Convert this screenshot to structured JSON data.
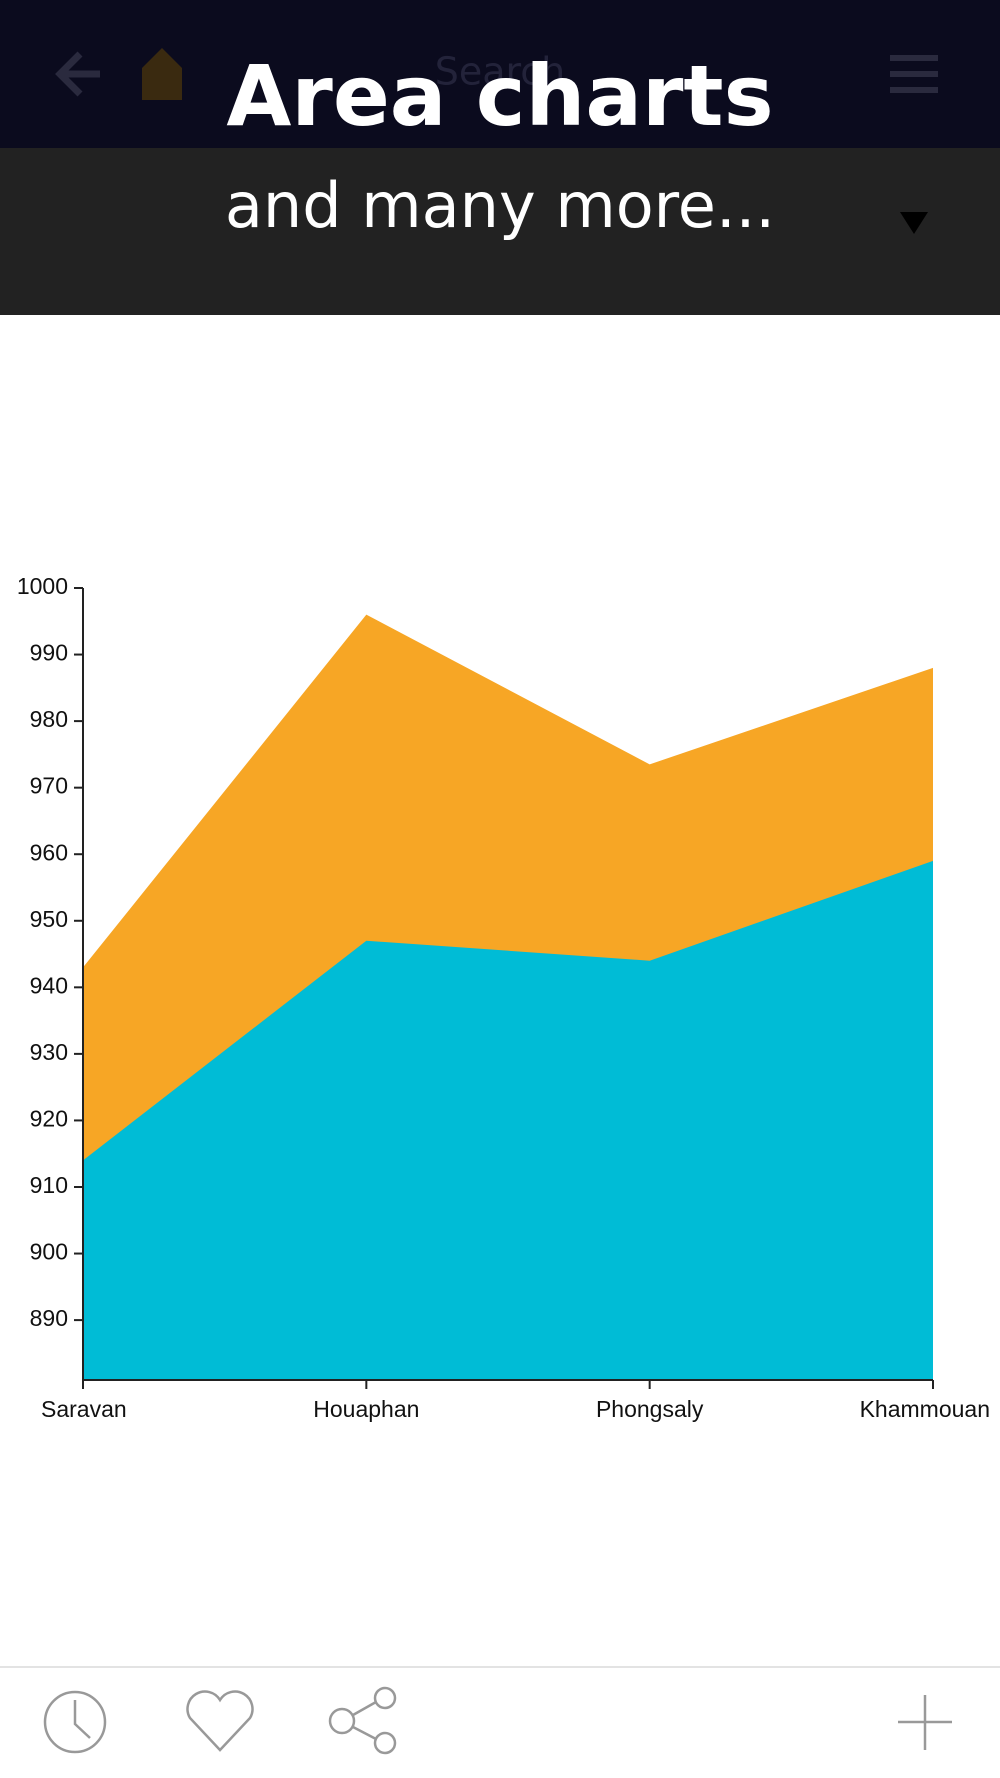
{
  "header": {
    "search": "Search",
    "headline": "Area charts",
    "subheadline": "and many more..."
  },
  "chart_data": {
    "type": "area",
    "categories": [
      "Saravan",
      "Houaphan",
      "Phongsaly",
      "Khammouan"
    ],
    "series": [
      {
        "color": "#f7a625",
        "values": [
          943,
          996,
          973.5,
          988
        ]
      },
      {
        "color": "#00bcd6",
        "values": [
          914,
          947,
          944,
          959
        ]
      }
    ],
    "ylim": [
      881,
      1000
    ],
    "yticks": [
      890,
      900,
      910,
      920,
      930,
      940,
      950,
      960,
      970,
      980,
      990,
      1000
    ]
  }
}
